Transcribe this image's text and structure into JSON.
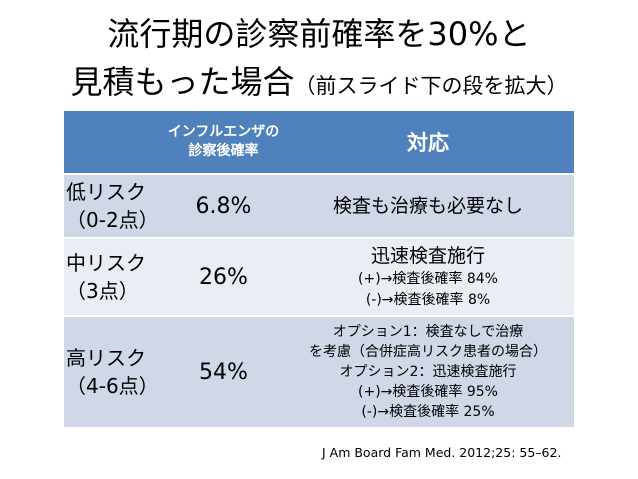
{
  "title": {
    "line1": "流行期の診察前確率を30%と",
    "line2_main": "見積もった場合",
    "line2_note": "（前スライド下の段を拡大）"
  },
  "table": {
    "header": {
      "col2_line1": "インフルエンザの",
      "col2_line2": "診察後確率",
      "col3": "対応"
    },
    "rows": [
      {
        "risk_line1": "低リスク",
        "risk_line2": "（0-2点）",
        "rate": "6.8%",
        "response": [
          "検査も治療も必要なし"
        ]
      },
      {
        "risk_line1": "中リスク",
        "risk_line2": "（3点）",
        "rate": "26%",
        "response": [
          "迅速検査施行",
          "(+)→検査後確率 84%",
          "(-)→検査後確率 8%"
        ]
      },
      {
        "risk_line1": "高リスク",
        "risk_line2": "（4-6点）",
        "rate": "54%",
        "response": [
          "オプション1：検査なしで治療",
          "を考慮（合併症高リスク患者の場合）",
          "オプション2：迅速検査施行",
          "(+)→検査後確率 95%",
          "(-)→検査後確率 25%"
        ]
      }
    ]
  },
  "citation": "J Am Board Fam Med. 2012;25: 55–62.",
  "colors": {
    "header_bg": "#4f81bd",
    "row_dark": "#d0d8e8",
    "row_light": "#e9edf4"
  }
}
